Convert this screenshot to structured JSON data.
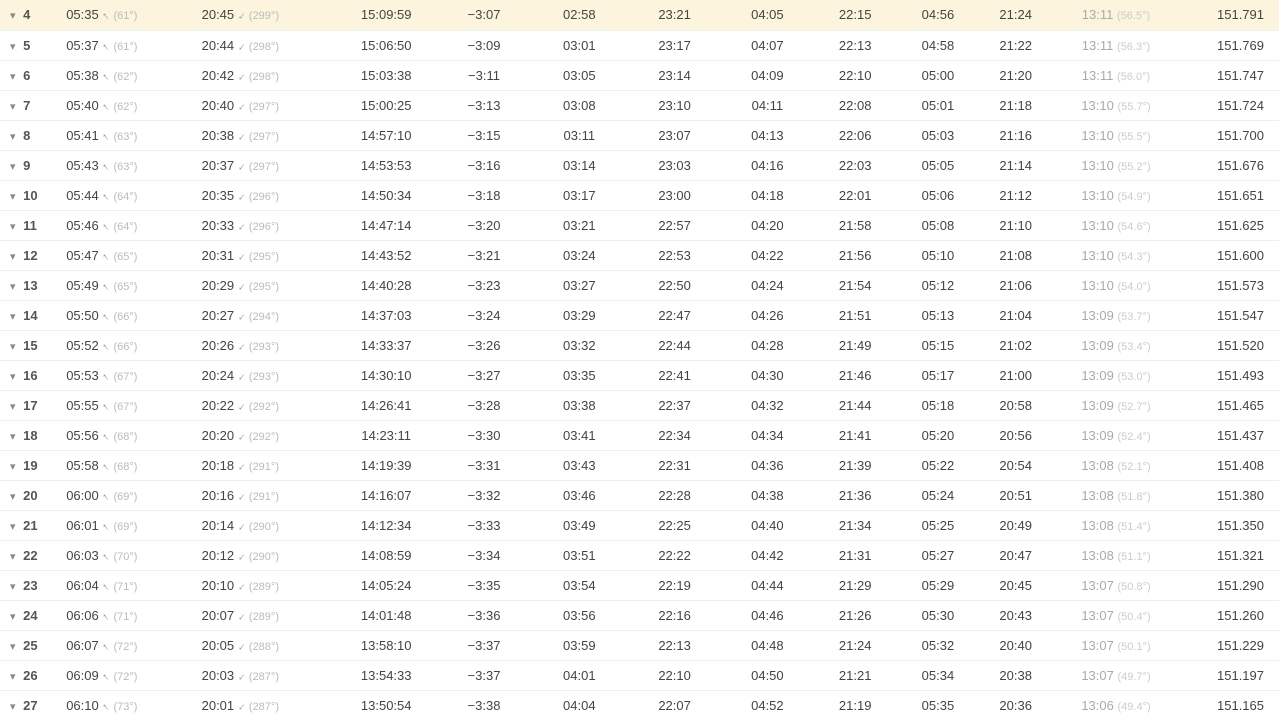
{
  "table": {
    "highlight_row_index": 0,
    "highlight_color": "#fdf4dd",
    "rows": [
      {
        "day": "4",
        "sunrise": "05:35",
        "sunrise_angle": "(61°)",
        "sunset": "20:45",
        "sunset_angle": "(299°)",
        "daylength": "15:09:59",
        "diff": "−3:07",
        "astro_start": "02:58",
        "astro_end": "23:21",
        "naut_start": "04:05",
        "naut_end": "22:15",
        "civil_start": "04:56",
        "civil_end": "21:24",
        "noon": "13:11",
        "noon_angle": "(56.5°)",
        "distance": "151.791"
      },
      {
        "day": "5",
        "sunrise": "05:37",
        "sunrise_angle": "(61°)",
        "sunset": "20:44",
        "sunset_angle": "(298°)",
        "daylength": "15:06:50",
        "diff": "−3:09",
        "astro_start": "03:01",
        "astro_end": "23:17",
        "naut_start": "04:07",
        "naut_end": "22:13",
        "civil_start": "04:58",
        "civil_end": "21:22",
        "noon": "13:11",
        "noon_angle": "(56.3°)",
        "distance": "151.769"
      },
      {
        "day": "6",
        "sunrise": "05:38",
        "sunrise_angle": "(62°)",
        "sunset": "20:42",
        "sunset_angle": "(298°)",
        "daylength": "15:03:38",
        "diff": "−3:11",
        "astro_start": "03:05",
        "astro_end": "23:14",
        "naut_start": "04:09",
        "naut_end": "22:10",
        "civil_start": "05:00",
        "civil_end": "21:20",
        "noon": "13:11",
        "noon_angle": "(56.0°)",
        "distance": "151.747"
      },
      {
        "day": "7",
        "sunrise": "05:40",
        "sunrise_angle": "(62°)",
        "sunset": "20:40",
        "sunset_angle": "(297°)",
        "daylength": "15:00:25",
        "diff": "−3:13",
        "astro_start": "03:08",
        "astro_end": "23:10",
        "naut_start": "04:11",
        "naut_end": "22:08",
        "civil_start": "05:01",
        "civil_end": "21:18",
        "noon": "13:10",
        "noon_angle": "(55.7°)",
        "distance": "151.724"
      },
      {
        "day": "8",
        "sunrise": "05:41",
        "sunrise_angle": "(63°)",
        "sunset": "20:38",
        "sunset_angle": "(297°)",
        "daylength": "14:57:10",
        "diff": "−3:15",
        "astro_start": "03:11",
        "astro_end": "23:07",
        "naut_start": "04:13",
        "naut_end": "22:06",
        "civil_start": "05:03",
        "civil_end": "21:16",
        "noon": "13:10",
        "noon_angle": "(55.5°)",
        "distance": "151.700"
      },
      {
        "day": "9",
        "sunrise": "05:43",
        "sunrise_angle": "(63°)",
        "sunset": "20:37",
        "sunset_angle": "(297°)",
        "daylength": "14:53:53",
        "diff": "−3:16",
        "astro_start": "03:14",
        "astro_end": "23:03",
        "naut_start": "04:16",
        "naut_end": "22:03",
        "civil_start": "05:05",
        "civil_end": "21:14",
        "noon": "13:10",
        "noon_angle": "(55.2°)",
        "distance": "151.676"
      },
      {
        "day": "10",
        "sunrise": "05:44",
        "sunrise_angle": "(64°)",
        "sunset": "20:35",
        "sunset_angle": "(296°)",
        "daylength": "14:50:34",
        "diff": "−3:18",
        "astro_start": "03:17",
        "astro_end": "23:00",
        "naut_start": "04:18",
        "naut_end": "22:01",
        "civil_start": "05:06",
        "civil_end": "21:12",
        "noon": "13:10",
        "noon_angle": "(54.9°)",
        "distance": "151.651"
      },
      {
        "day": "11",
        "sunrise": "05:46",
        "sunrise_angle": "(64°)",
        "sunset": "20:33",
        "sunset_angle": "(296°)",
        "daylength": "14:47:14",
        "diff": "−3:20",
        "astro_start": "03:21",
        "astro_end": "22:57",
        "naut_start": "04:20",
        "naut_end": "21:58",
        "civil_start": "05:08",
        "civil_end": "21:10",
        "noon": "13:10",
        "noon_angle": "(54.6°)",
        "distance": "151.625"
      },
      {
        "day": "12",
        "sunrise": "05:47",
        "sunrise_angle": "(65°)",
        "sunset": "20:31",
        "sunset_angle": "(295°)",
        "daylength": "14:43:52",
        "diff": "−3:21",
        "astro_start": "03:24",
        "astro_end": "22:53",
        "naut_start": "04:22",
        "naut_end": "21:56",
        "civil_start": "05:10",
        "civil_end": "21:08",
        "noon": "13:10",
        "noon_angle": "(54.3°)",
        "distance": "151.600"
      },
      {
        "day": "13",
        "sunrise": "05:49",
        "sunrise_angle": "(65°)",
        "sunset": "20:29",
        "sunset_angle": "(295°)",
        "daylength": "14:40:28",
        "diff": "−3:23",
        "astro_start": "03:27",
        "astro_end": "22:50",
        "naut_start": "04:24",
        "naut_end": "21:54",
        "civil_start": "05:12",
        "civil_end": "21:06",
        "noon": "13:10",
        "noon_angle": "(54.0°)",
        "distance": "151.573"
      },
      {
        "day": "14",
        "sunrise": "05:50",
        "sunrise_angle": "(66°)",
        "sunset": "20:27",
        "sunset_angle": "(294°)",
        "daylength": "14:37:03",
        "diff": "−3:24",
        "astro_start": "03:29",
        "astro_end": "22:47",
        "naut_start": "04:26",
        "naut_end": "21:51",
        "civil_start": "05:13",
        "civil_end": "21:04",
        "noon": "13:09",
        "noon_angle": "(53.7°)",
        "distance": "151.547"
      },
      {
        "day": "15",
        "sunrise": "05:52",
        "sunrise_angle": "(66°)",
        "sunset": "20:26",
        "sunset_angle": "(293°)",
        "daylength": "14:33:37",
        "diff": "−3:26",
        "astro_start": "03:32",
        "astro_end": "22:44",
        "naut_start": "04:28",
        "naut_end": "21:49",
        "civil_start": "05:15",
        "civil_end": "21:02",
        "noon": "13:09",
        "noon_angle": "(53.4°)",
        "distance": "151.520"
      },
      {
        "day": "16",
        "sunrise": "05:53",
        "sunrise_angle": "(67°)",
        "sunset": "20:24",
        "sunset_angle": "(293°)",
        "daylength": "14:30:10",
        "diff": "−3:27",
        "astro_start": "03:35",
        "astro_end": "22:41",
        "naut_start": "04:30",
        "naut_end": "21:46",
        "civil_start": "05:17",
        "civil_end": "21:00",
        "noon": "13:09",
        "noon_angle": "(53.0°)",
        "distance": "151.493"
      },
      {
        "day": "17",
        "sunrise": "05:55",
        "sunrise_angle": "(67°)",
        "sunset": "20:22",
        "sunset_angle": "(292°)",
        "daylength": "14:26:41",
        "diff": "−3:28",
        "astro_start": "03:38",
        "astro_end": "22:37",
        "naut_start": "04:32",
        "naut_end": "21:44",
        "civil_start": "05:18",
        "civil_end": "20:58",
        "noon": "13:09",
        "noon_angle": "(52.7°)",
        "distance": "151.465"
      },
      {
        "day": "18",
        "sunrise": "05:56",
        "sunrise_angle": "(68°)",
        "sunset": "20:20",
        "sunset_angle": "(292°)",
        "daylength": "14:23:11",
        "diff": "−3:30",
        "astro_start": "03:41",
        "astro_end": "22:34",
        "naut_start": "04:34",
        "naut_end": "21:41",
        "civil_start": "05:20",
        "civil_end": "20:56",
        "noon": "13:09",
        "noon_angle": "(52.4°)",
        "distance": "151.437"
      },
      {
        "day": "19",
        "sunrise": "05:58",
        "sunrise_angle": "(68°)",
        "sunset": "20:18",
        "sunset_angle": "(291°)",
        "daylength": "14:19:39",
        "diff": "−3:31",
        "astro_start": "03:43",
        "astro_end": "22:31",
        "naut_start": "04:36",
        "naut_end": "21:39",
        "civil_start": "05:22",
        "civil_end": "20:54",
        "noon": "13:08",
        "noon_angle": "(52.1°)",
        "distance": "151.408"
      },
      {
        "day": "20",
        "sunrise": "06:00",
        "sunrise_angle": "(69°)",
        "sunset": "20:16",
        "sunset_angle": "(291°)",
        "daylength": "14:16:07",
        "diff": "−3:32",
        "astro_start": "03:46",
        "astro_end": "22:28",
        "naut_start": "04:38",
        "naut_end": "21:36",
        "civil_start": "05:24",
        "civil_end": "20:51",
        "noon": "13:08",
        "noon_angle": "(51.8°)",
        "distance": "151.380"
      },
      {
        "day": "21",
        "sunrise": "06:01",
        "sunrise_angle": "(69°)",
        "sunset": "20:14",
        "sunset_angle": "(290°)",
        "daylength": "14:12:34",
        "diff": "−3:33",
        "astro_start": "03:49",
        "astro_end": "22:25",
        "naut_start": "04:40",
        "naut_end": "21:34",
        "civil_start": "05:25",
        "civil_end": "20:49",
        "noon": "13:08",
        "noon_angle": "(51.4°)",
        "distance": "151.350"
      },
      {
        "day": "22",
        "sunrise": "06:03",
        "sunrise_angle": "(70°)",
        "sunset": "20:12",
        "sunset_angle": "(290°)",
        "daylength": "14:08:59",
        "diff": "−3:34",
        "astro_start": "03:51",
        "astro_end": "22:22",
        "naut_start": "04:42",
        "naut_end": "21:31",
        "civil_start": "05:27",
        "civil_end": "20:47",
        "noon": "13:08",
        "noon_angle": "(51.1°)",
        "distance": "151.321"
      },
      {
        "day": "23",
        "sunrise": "06:04",
        "sunrise_angle": "(71°)",
        "sunset": "20:10",
        "sunset_angle": "(289°)",
        "daylength": "14:05:24",
        "diff": "−3:35",
        "astro_start": "03:54",
        "astro_end": "22:19",
        "naut_start": "04:44",
        "naut_end": "21:29",
        "civil_start": "05:29",
        "civil_end": "20:45",
        "noon": "13:07",
        "noon_angle": "(50.8°)",
        "distance": "151.290"
      },
      {
        "day": "24",
        "sunrise": "06:06",
        "sunrise_angle": "(71°)",
        "sunset": "20:07",
        "sunset_angle": "(289°)",
        "daylength": "14:01:48",
        "diff": "−3:36",
        "astro_start": "03:56",
        "astro_end": "22:16",
        "naut_start": "04:46",
        "naut_end": "21:26",
        "civil_start": "05:30",
        "civil_end": "20:43",
        "noon": "13:07",
        "noon_angle": "(50.4°)",
        "distance": "151.260"
      },
      {
        "day": "25",
        "sunrise": "06:07",
        "sunrise_angle": "(72°)",
        "sunset": "20:05",
        "sunset_angle": "(288°)",
        "daylength": "13:58:10",
        "diff": "−3:37",
        "astro_start": "03:59",
        "astro_end": "22:13",
        "naut_start": "04:48",
        "naut_end": "21:24",
        "civil_start": "05:32",
        "civil_end": "20:40",
        "noon": "13:07",
        "noon_angle": "(50.1°)",
        "distance": "151.229"
      },
      {
        "day": "26",
        "sunrise": "06:09",
        "sunrise_angle": "(72°)",
        "sunset": "20:03",
        "sunset_angle": "(287°)",
        "daylength": "13:54:33",
        "diff": "−3:37",
        "astro_start": "04:01",
        "astro_end": "22:10",
        "naut_start": "04:50",
        "naut_end": "21:21",
        "civil_start": "05:34",
        "civil_end": "20:38",
        "noon": "13:07",
        "noon_angle": "(49.7°)",
        "distance": "151.197"
      },
      {
        "day": "27",
        "sunrise": "06:10",
        "sunrise_angle": "(73°)",
        "sunset": "20:01",
        "sunset_angle": "(287°)",
        "daylength": "13:50:54",
        "diff": "−3:38",
        "astro_start": "04:04",
        "astro_end": "22:07",
        "naut_start": "04:52",
        "naut_end": "21:19",
        "civil_start": "05:35",
        "civil_end": "20:36",
        "noon": "13:06",
        "noon_angle": "(49.4°)",
        "distance": "151.165"
      }
    ]
  }
}
